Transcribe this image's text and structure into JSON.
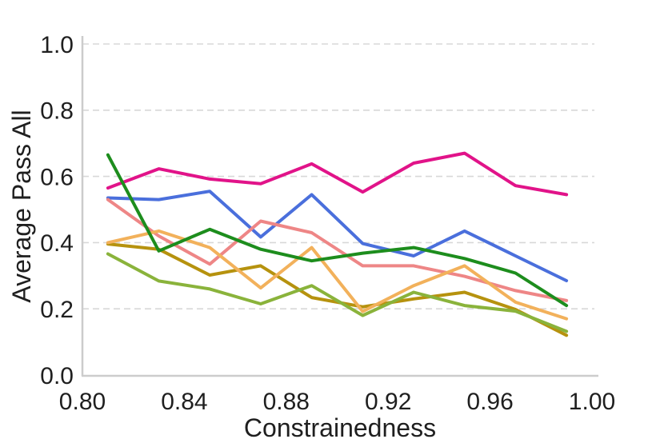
{
  "chart_data": {
    "type": "line",
    "title": "",
    "xlabel": "Constrainedness",
    "ylabel": "Average Pass All",
    "xlim": [
      0.8,
      1.0
    ],
    "ylim": [
      0.0,
      1.0
    ],
    "xticks": [
      0.8,
      0.84,
      0.88,
      0.92,
      0.96,
      1.0
    ],
    "xtick_labels": [
      "0.80",
      "0.84",
      "0.88",
      "0.92",
      "0.96",
      "1.00"
    ],
    "yticks": [
      0.0,
      0.2,
      0.4,
      0.6,
      0.8,
      1.0
    ],
    "ytick_labels": [
      "0.0",
      "0.2",
      "0.4",
      "0.6",
      "0.8",
      "1.0"
    ],
    "grid": "horizontal-dashed",
    "legend": "none",
    "x": [
      0.81,
      0.83,
      0.85,
      0.87,
      0.89,
      0.91,
      0.93,
      0.95,
      0.97,
      0.99
    ],
    "series": [
      {
        "name": "blue-line",
        "color": "#4a6fdc",
        "values": [
          0.535,
          0.53,
          0.555,
          0.417,
          0.545,
          0.397,
          0.36,
          0.435,
          0.36,
          0.285
        ]
      },
      {
        "name": "salmon-line",
        "color": "#ee8686",
        "values": [
          0.53,
          0.42,
          0.335,
          0.465,
          0.43,
          0.33,
          0.33,
          0.298,
          0.255,
          0.225
        ]
      },
      {
        "name": "dark-yellow-line",
        "color": "#b6920e",
        "values": [
          0.396,
          0.38,
          0.302,
          0.33,
          0.234,
          0.206,
          0.23,
          0.25,
          0.198,
          0.12
        ]
      },
      {
        "name": "orange-line",
        "color": "#f2b15b",
        "values": [
          0.4,
          0.435,
          0.385,
          0.263,
          0.385,
          0.192,
          0.27,
          0.33,
          0.22,
          0.17
        ]
      },
      {
        "name": "yellow-green-line",
        "color": "#8ab33b",
        "values": [
          0.366,
          0.284,
          0.26,
          0.215,
          0.27,
          0.18,
          0.25,
          0.21,
          0.193,
          0.132
        ]
      },
      {
        "name": "magenta-line",
        "color": "#e11389",
        "values": [
          0.565,
          0.623,
          0.592,
          0.578,
          0.638,
          0.553,
          0.64,
          0.67,
          0.572,
          0.545
        ]
      },
      {
        "name": "green-line",
        "color": "#1d8d1d",
        "values": [
          0.665,
          0.375,
          0.44,
          0.38,
          0.345,
          0.368,
          0.385,
          0.352,
          0.308,
          0.21
        ]
      }
    ],
    "style": {
      "grid_color": "#d8d8d8",
      "spine_color": "#cccccc",
      "text_color": "#1f1f1f",
      "line_width": 4
    }
  }
}
